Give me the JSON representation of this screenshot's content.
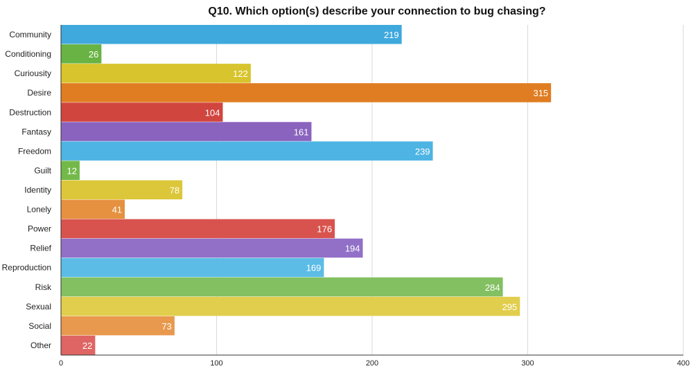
{
  "chart_data": {
    "type": "bar",
    "orientation": "horizontal",
    "title": "Q10. Which option(s) describe your connection to bug chasing?",
    "xlabel": "",
    "ylabel": "",
    "xlim": [
      0,
      400
    ],
    "x_ticks": [
      "0",
      "100",
      "200",
      "300",
      "400"
    ],
    "grid": "vertical",
    "legend": "none",
    "categories": [
      "Community",
      "Conditioning",
      "Curiousity",
      "Desire",
      "Destruction",
      "Fantasy",
      "Freedom",
      "Guilt",
      "Identity",
      "Lonely",
      "Power",
      "Relief",
      "Reproduction",
      "Risk",
      "Sexual",
      "Social",
      "Other"
    ],
    "values": [
      219,
      26,
      122,
      315,
      104,
      161,
      239,
      12,
      78,
      41,
      176,
      194,
      169,
      284,
      295,
      73,
      22
    ],
    "data_labels": [
      "219",
      "26",
      "122",
      "315",
      "104",
      "161",
      "239",
      "12",
      "78",
      "41",
      "176",
      "194",
      "169",
      "284",
      "295",
      "73",
      "22"
    ],
    "colors": [
      "#3fa9dd",
      "#68b343",
      "#d8c42c",
      "#e07d22",
      "#d1453f",
      "#8a63be",
      "#4db4e3",
      "#73b949",
      "#dcc73a",
      "#e5913f",
      "#d9534e",
      "#9270c7",
      "#5cbce6",
      "#82c061",
      "#e1ce4c",
      "#e8994e",
      "#de6563"
    ]
  }
}
